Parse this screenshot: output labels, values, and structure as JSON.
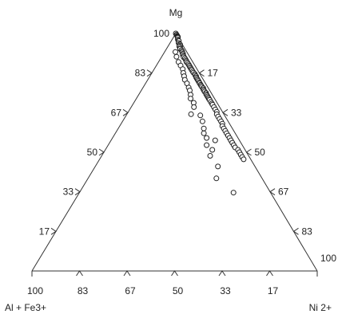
{
  "chart_data": {
    "type": "scatter",
    "subtype": "ternary",
    "vertices": {
      "top": "Mg",
      "left": "Al + Fe3+",
      "right": "Ni 2+"
    },
    "tick_labels": [
      "100",
      "83",
      "67",
      "50",
      "33",
      "17"
    ],
    "point_style": "open-circle",
    "grid": false,
    "legend": "none",
    "points_in_data_units": "percent Mg, percent Ni 2+ (remainder Al + Fe3+)",
    "points": [
      [
        100,
        0
      ],
      [
        99.5,
        0.5
      ],
      [
        99.4,
        0.6
      ],
      [
        99,
        1
      ],
      [
        98.8,
        1.2
      ],
      [
        98.6,
        1.4
      ],
      [
        98.5,
        1.5
      ],
      [
        98.2,
        1.6
      ],
      [
        97.5,
        2.0
      ],
      [
        97.0,
        2.4
      ],
      [
        96.8,
        2.7
      ],
      [
        96.0,
        3.0
      ],
      [
        95.5,
        3.5
      ],
      [
        95.3,
        3.9
      ],
      [
        94.8,
        4.2
      ],
      [
        94.5,
        4.0
      ],
      [
        94.0,
        4.5
      ],
      [
        93.5,
        4.8
      ],
      [
        93.0,
        5.5
      ],
      [
        92.5,
        6.0
      ],
      [
        92.0,
        6.3
      ],
      [
        91.5,
        6.8
      ],
      [
        91.0,
        7.0
      ],
      [
        90.5,
        7.5
      ],
      [
        90.0,
        7.8
      ],
      [
        89.6,
        8.4
      ],
      [
        89.0,
        9.0
      ],
      [
        88.5,
        9.5
      ],
      [
        88.0,
        9.8
      ],
      [
        87.6,
        10.4
      ],
      [
        87.0,
        11.0
      ],
      [
        86.5,
        11.5
      ],
      [
        86.0,
        12.0
      ],
      [
        85.5,
        12.5
      ],
      [
        85.0,
        13.0
      ],
      [
        84.6,
        13.4
      ],
      [
        84.0,
        14.0
      ],
      [
        83.5,
        14.5
      ],
      [
        83.0,
        15.2
      ],
      [
        82.5,
        15.6
      ],
      [
        82.0,
        16.2
      ],
      [
        81.5,
        16.5
      ],
      [
        81.0,
        17.0
      ],
      [
        80.5,
        17.5
      ],
      [
        80.0,
        18.0
      ],
      [
        79.4,
        18.6
      ],
      [
        79.0,
        19.0
      ],
      [
        78.4,
        19.6
      ],
      [
        78.0,
        20.0
      ],
      [
        77.5,
        20.5
      ],
      [
        77.0,
        21.2
      ],
      [
        76.5,
        21.5
      ],
      [
        76.0,
        22.0
      ],
      [
        75.5,
        22.5
      ],
      [
        75.0,
        23.2
      ],
      [
        74.5,
        23.5
      ],
      [
        74.0,
        24.0
      ],
      [
        73.5,
        24.5
      ],
      [
        73.0,
        25.0
      ],
      [
        72.5,
        25.5
      ],
      [
        72.0,
        26.0
      ],
      [
        71.2,
        26.8
      ],
      [
        70.5,
        27.5
      ],
      [
        70.0,
        28.0
      ],
      [
        69.0,
        29.0
      ],
      [
        68.0,
        30.0
      ],
      [
        67.0,
        31.0
      ],
      [
        66.0,
        31.5
      ],
      [
        65.0,
        32.5
      ],
      [
        64.0,
        33.5
      ],
      [
        63.0,
        34.5
      ],
      [
        62.0,
        35.5
      ],
      [
        61.0,
        36.0
      ],
      [
        60.0,
        37.0
      ],
      [
        59.0,
        38.0
      ],
      [
        58.0,
        39.0
      ],
      [
        57.0,
        40.0
      ],
      [
        56.0,
        41.0
      ],
      [
        55.0,
        42.0
      ],
      [
        54.0,
        43.0
      ],
      [
        53.0,
        44.0
      ],
      [
        52.0,
        45.0
      ],
      [
        51.0,
        46.5
      ],
      [
        50.0,
        47.5
      ],
      [
        49.0,
        48.5
      ],
      [
        48.0,
        49.5
      ],
      [
        47.0,
        50.5
      ],
      [
        92.2,
        3.8
      ],
      [
        90.2,
        5.2
      ],
      [
        88.0,
        7.0
      ],
      [
        86.5,
        8.5
      ],
      [
        85.0,
        10.0
      ],
      [
        83.4,
        11.0
      ],
      [
        82.0,
        12.0
      ],
      [
        80.5,
        13.0
      ],
      [
        79.0,
        14.5
      ],
      [
        77.2,
        16.0
      ],
      [
        76.0,
        17.0
      ],
      [
        74.2,
        18.2
      ],
      [
        72.6,
        19.0
      ],
      [
        70.8,
        21.0
      ],
      [
        69.0,
        22.0
      ],
      [
        66.0,
        22.5
      ],
      [
        65.5,
        26.0
      ],
      [
        63.0,
        28.0
      ],
      [
        60.0,
        30.0
      ],
      [
        58.0,
        31.0
      ],
      [
        56.0,
        33.0
      ],
      [
        55.0,
        36.5
      ],
      [
        53.0,
        34.5
      ],
      [
        51.0,
        37.5
      ],
      [
        48.5,
        38.0
      ],
      [
        44.0,
        43.0
      ],
      [
        39.0,
        45.0
      ],
      [
        33.0,
        54.0
      ]
    ]
  }
}
